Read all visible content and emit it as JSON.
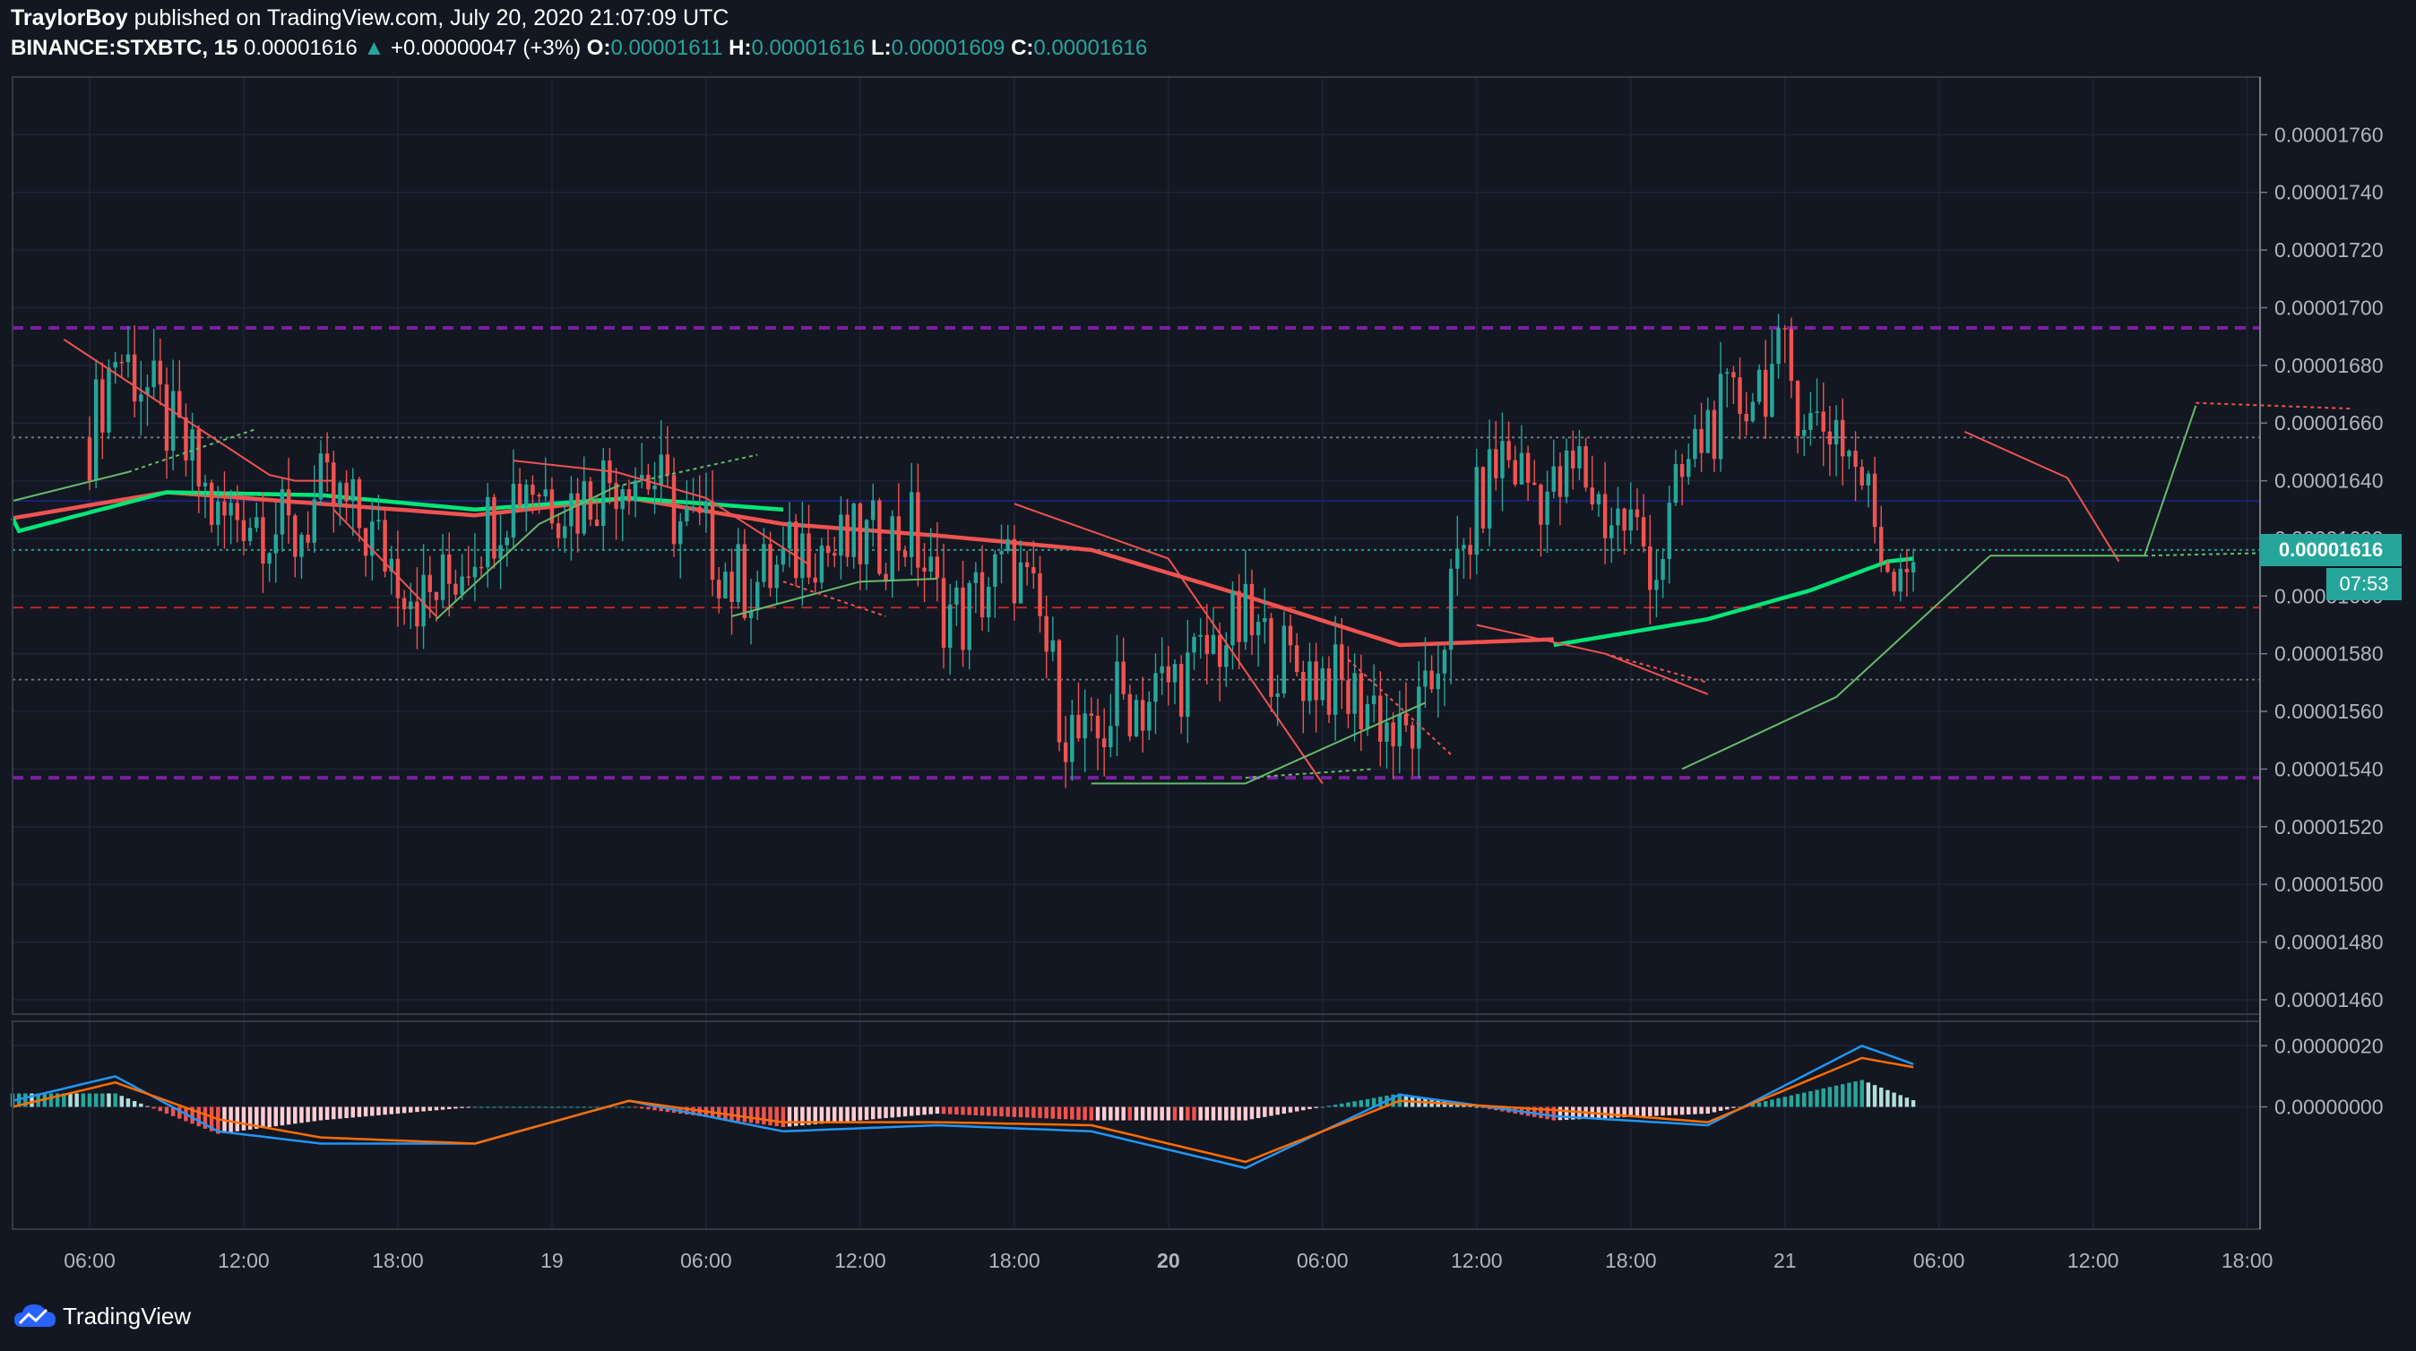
{
  "header": {
    "author": "TraylorBoy",
    "published_text": "published on TradingView.com, July 20, 2020 21:07:09 UTC",
    "symbol": "BINANCE:STXBTC, 15",
    "last_price": "0.00001616",
    "change_arrow": "▲",
    "change": "+0.00000047 (+3%)",
    "open_label": "O:",
    "open": "0.00001611",
    "high_label": "H:",
    "high": "0.00001616",
    "low_label": "L:",
    "low": "0.00001609",
    "close_label": "C:",
    "close": "0.00001616"
  },
  "price_tag": "0.00001616",
  "countdown": "07:53",
  "footer": {
    "logo_text": "TradingView"
  },
  "colors": {
    "background": "#131722",
    "up": "#26a69a",
    "down": "#ef5350",
    "grid": "#1f2433",
    "resistance": "#7b1fa2",
    "ma_slow": "#ef5350",
    "ma_fast": "#00e676",
    "macd": "#2196f3",
    "signal": "#ff6d00",
    "blue_level": "#1a237e",
    "red_level": "#c62828"
  },
  "chart_data": {
    "type": "candlestick",
    "symbol": "BINANCE:STXBTC",
    "interval": "15",
    "y_ticks": [
      "0.00001760",
      "0.00001740",
      "0.00001720",
      "0.00001700",
      "0.00001680",
      "0.00001660",
      "0.00001640",
      "0.00001620",
      "0.00001600",
      "0.00001580",
      "0.00001560",
      "0.00001540",
      "0.00001520",
      "0.00001500",
      "0.00001480",
      "0.00001460"
    ],
    "y_range": [
      1.455e-05,
      1.78e-05
    ],
    "x_ticks": [
      "06:00",
      "12:00",
      "18:00",
      "19",
      "06:00",
      "12:00",
      "18:00",
      "20",
      "06:00",
      "12:00",
      "18:00",
      "21",
      "06:00",
      "12:00",
      "18:00"
    ],
    "x_range_hours": [
      -3.0,
      84.5
    ],
    "horizontal_levels": [
      {
        "value": 1.693e-05,
        "style": "dashed",
        "color": "#7b1fa2"
      },
      {
        "value": 1.537e-05,
        "style": "dashed",
        "color": "#7b1fa2"
      },
      {
        "value": 1.655e-05,
        "style": "dotted",
        "color": "#787b86"
      },
      {
        "value": 1.633e-05,
        "style": "solid",
        "color": "#1a237e"
      },
      {
        "value": 1.596e-05,
        "style": "dashed",
        "color": "#c62828"
      },
      {
        "value": 1.571e-05,
        "style": "dotted",
        "color": "#787b86"
      },
      {
        "value": 1.616e-05,
        "style": "dotted",
        "color": "#26a69a"
      }
    ],
    "price_anchors": [
      [
        0,
        1.655e-05
      ],
      [
        1,
        1.685e-05
      ],
      [
        2,
        1.675e-05
      ],
      [
        3,
        1.66e-05
      ],
      [
        4,
        1.645e-05
      ],
      [
        5,
        1.625e-05
      ],
      [
        6,
        1.63e-05
      ],
      [
        7,
        1.625e-05
      ],
      [
        8,
        1.62e-05
      ],
      [
        9,
        1.635e-05
      ],
      [
        10,
        1.63e-05
      ],
      [
        11,
        1.62e-05
      ],
      [
        12,
        1.61e-05
      ],
      [
        13,
        1.598e-05
      ],
      [
        14,
        1.605e-05
      ],
      [
        15,
        1.62e-05
      ],
      [
        16,
        1.63e-05
      ],
      [
        17,
        1.642e-05
      ],
      [
        18,
        1.635e-05
      ],
      [
        19,
        1.632e-05
      ],
      [
        20,
        1.64e-05
      ],
      [
        21,
        1.645e-05
      ],
      [
        22,
        1.64e-05
      ],
      [
        23,
        1.625e-05
      ],
      [
        24,
        1.62e-05
      ],
      [
        25,
        1.605e-05
      ],
      [
        26,
        1.605e-05
      ],
      [
        27,
        1.61e-05
      ],
      [
        28,
        1.62e-05
      ],
      [
        29,
        1.615e-05
      ],
      [
        30,
        1.618e-05
      ],
      [
        31,
        1.62e-05
      ],
      [
        32,
        1.623e-05
      ],
      [
        33,
        1.598e-05
      ],
      [
        34,
        1.592e-05
      ],
      [
        35,
        1.605e-05
      ],
      [
        36,
        1.61e-05
      ],
      [
        37,
        1.59e-05
      ],
      [
        38,
        1.555e-05
      ],
      [
        39,
        1.545e-05
      ],
      [
        40,
        1.565e-05
      ],
      [
        41,
        1.563e-05
      ],
      [
        42,
        1.57e-05
      ],
      [
        43,
        1.575e-05
      ],
      [
        44,
        1.585e-05
      ],
      [
        45,
        1.59e-05
      ],
      [
        46,
        1.58e-05
      ],
      [
        47,
        1.575e-05
      ],
      [
        48,
        1.573e-05
      ],
      [
        49,
        1.565e-05
      ],
      [
        50,
        1.563e-05
      ],
      [
        51,
        1.548e-05
      ],
      [
        52,
        1.56e-05
      ],
      [
        53,
        1.6e-05
      ],
      [
        54,
        1.63e-05
      ],
      [
        55,
        1.65e-05
      ],
      [
        56,
        1.64e-05
      ],
      [
        57,
        1.635e-05
      ],
      [
        58,
        1.645e-05
      ],
      [
        59,
        1.628e-05
      ],
      [
        60,
        1.625e-05
      ],
      [
        61,
        1.61e-05
      ],
      [
        62,
        1.64e-05
      ],
      [
        63,
        1.66e-05
      ],
      [
        64,
        1.665e-05
      ],
      [
        65,
        1.675e-05
      ],
      [
        66,
        1.68e-05
      ],
      [
        67,
        1.66e-05
      ],
      [
        68,
        1.66e-05
      ],
      [
        69,
        1.64e-05
      ],
      [
        70,
        1.612e-05
      ],
      [
        71,
        1.616e-05
      ]
    ],
    "ma_slow_anchors": [
      [
        -3,
        1.627e-05
      ],
      [
        3,
        1.636e-05
      ],
      [
        9,
        1.632e-05
      ],
      [
        15,
        1.628e-05
      ],
      [
        21,
        1.634e-05
      ],
      [
        27,
        1.625e-05
      ],
      [
        33,
        1.621e-05
      ],
      [
        39,
        1.616e-05
      ],
      [
        45,
        1.6e-05
      ],
      [
        51,
        1.583e-05
      ],
      [
        57,
        1.585e-05
      ]
    ],
    "ma_fast_anchors": [
      [
        -3,
        1.622e-05
      ],
      [
        3,
        1.636e-05
      ],
      [
        9,
        1.635e-05
      ],
      [
        15,
        1.63e-05
      ],
      [
        21,
        1.634e-05
      ],
      [
        27,
        1.63e-05
      ]
    ],
    "ma_fast_anchors_b": [
      [
        57,
        1.583e-05
      ],
      [
        63,
        1.592e-05
      ],
      [
        67,
        1.602e-05
      ],
      [
        70,
        1.612e-05
      ],
      [
        71,
        1.613e-05
      ]
    ],
    "pattern_lines": [
      {
        "color": "#ef5350",
        "dash": "",
        "points": [
          [
            -1,
            1.689e-05
          ],
          [
            7,
            1.642e-05
          ],
          [
            8,
            1.64e-05
          ],
          [
            9.5,
            1.64e-05
          ]
        ]
      },
      {
        "color": "#66bb6a",
        "dash": "",
        "points": [
          [
            -3,
            1.633e-05
          ],
          [
            1.5,
            1.643e-05
          ]
        ]
      },
      {
        "color": "#66bb6a",
        "dash": "4,4",
        "points": [
          [
            1.5,
            1.643e-05
          ],
          [
            6.5,
            1.658e-05
          ]
        ]
      },
      {
        "color": "#ef5350",
        "dash": "",
        "points": [
          [
            9.5,
            1.63e-05
          ],
          [
            13.5,
            1.593e-05
          ]
        ]
      },
      {
        "color": "#66bb6a",
        "dash": "",
        "points": [
          [
            13.5,
            1.592e-05
          ],
          [
            17.5,
            1.625e-05
          ],
          [
            20.5,
            1.638e-05
          ]
        ]
      },
      {
        "color": "#66bb6a",
        "dash": "4,4",
        "points": [
          [
            20.5,
            1.638e-05
          ],
          [
            26,
            1.649e-05
          ]
        ]
      },
      {
        "color": "#ef5350",
        "dash": "",
        "points": [
          [
            16.5,
            1.647e-05
          ],
          [
            20.5,
            1.643e-05
          ],
          [
            24,
            1.634e-05
          ],
          [
            28,
            1.611e-05
          ]
        ]
      },
      {
        "color": "#66bb6a",
        "dash": "",
        "points": [
          [
            25,
            1.593e-05
          ],
          [
            30,
            1.605e-05
          ],
          [
            33,
            1.606e-05
          ]
        ]
      },
      {
        "color": "#ef5350",
        "dash": "4,4",
        "points": [
          [
            27,
            1.605e-05
          ],
          [
            31,
            1.593e-05
          ]
        ]
      },
      {
        "color": "#ef5350",
        "dash": "",
        "points": [
          [
            36,
            1.632e-05
          ],
          [
            42,
            1.613e-05
          ],
          [
            44,
            1.587e-05
          ]
        ]
      },
      {
        "color": "#ef5350",
        "dash": "",
        "points": [
          [
            44,
            1.587e-05
          ],
          [
            48,
            1.535e-05
          ]
        ]
      },
      {
        "color": "#66bb6a",
        "dash": "",
        "points": [
          [
            39,
            1.535e-05
          ],
          [
            45,
            1.535e-05
          ],
          [
            52,
            1.563e-05
          ]
        ]
      },
      {
        "color": "#66bb6a",
        "dash": "4,4",
        "points": [
          [
            45,
            1.537e-05
          ],
          [
            50,
            1.54e-05
          ]
        ]
      },
      {
        "color": "#ef5350",
        "dash": "4,4",
        "points": [
          [
            49,
            1.578e-05
          ],
          [
            53,
            1.545e-05
          ]
        ]
      },
      {
        "color": "#ef5350",
        "dash": "",
        "points": [
          [
            54,
            1.59e-05
          ],
          [
            59,
            1.58e-05
          ],
          [
            63,
            1.566e-05
          ]
        ]
      },
      {
        "color": "#ef5350",
        "dash": "4,4",
        "points": [
          [
            59,
            1.58e-05
          ],
          [
            63,
            1.57e-05
          ]
        ]
      },
      {
        "color": "#66bb6a",
        "dash": "",
        "points": [
          [
            62,
            1.54e-05
          ],
          [
            68,
            1.565e-05
          ],
          [
            74,
            1.614e-05
          ]
        ]
      },
      {
        "color": "#ef5350",
        "dash": "",
        "points": [
          [
            73,
            1.657e-05
          ],
          [
            77,
            1.641e-05
          ],
          [
            79,
            1.612e-05
          ]
        ]
      },
      {
        "color": "#66bb6a",
        "dash": "",
        "points": [
          [
            74,
            1.614e-05
          ],
          [
            80,
            1.614e-05
          ],
          [
            82,
            1.666e-05
          ]
        ]
      },
      {
        "color": "#ef5350",
        "dash": "4,4",
        "points": [
          [
            82,
            1.667e-05
          ],
          [
            88,
            1.665e-05
          ]
        ]
      },
      {
        "color": "#66bb6a",
        "dash": "4,4",
        "points": [
          [
            80,
            1.614e-05
          ],
          [
            90,
            1.616e-05
          ]
        ]
      }
    ],
    "indicator": {
      "name": "MACD",
      "y_ticks": [
        "0.00000020",
        "0.00000000"
      ],
      "y_range": [
        -4e-07,
        2.8e-07
      ],
      "macd_anchors": [
        [
          -3,
          2e-08
        ],
        [
          1,
          1e-07
        ],
        [
          5,
          -8e-08
        ],
        [
          9,
          -1.2e-07
        ],
        [
          15,
          -1.2e-07
        ],
        [
          21,
          2e-08
        ],
        [
          27,
          -8e-08
        ],
        [
          33,
          -6e-08
        ],
        [
          39,
          -8e-08
        ],
        [
          45,
          -2e-07
        ],
        [
          51,
          4e-08
        ],
        [
          57,
          -3e-08
        ],
        [
          63,
          -6e-08
        ],
        [
          69,
          2e-07
        ],
        [
          73,
          8e-08
        ],
        [
          79,
          -3e-08
        ],
        [
          81,
          7e-08
        ],
        [
          84.5,
          -1.2e-07
        ]
      ],
      "signal_anchors": [
        [
          -3,
          0.0
        ],
        [
          1,
          8e-08
        ],
        [
          5,
          -4e-08
        ],
        [
          9,
          -1e-07
        ],
        [
          15,
          -1.2e-07
        ],
        [
          21,
          2e-08
        ],
        [
          27,
          -5e-08
        ],
        [
          33,
          -5e-08
        ],
        [
          39,
          -6e-08
        ],
        [
          45,
          -1.8e-07
        ],
        [
          51,
          2e-08
        ],
        [
          57,
          -1e-08
        ],
        [
          63,
          -5e-08
        ],
        [
          69,
          1.6e-07
        ],
        [
          73,
          1e-07
        ],
        [
          79,
          0.0
        ],
        [
          81,
          8e-08
        ],
        [
          84.5,
          -1e-07
        ]
      ]
    }
  }
}
